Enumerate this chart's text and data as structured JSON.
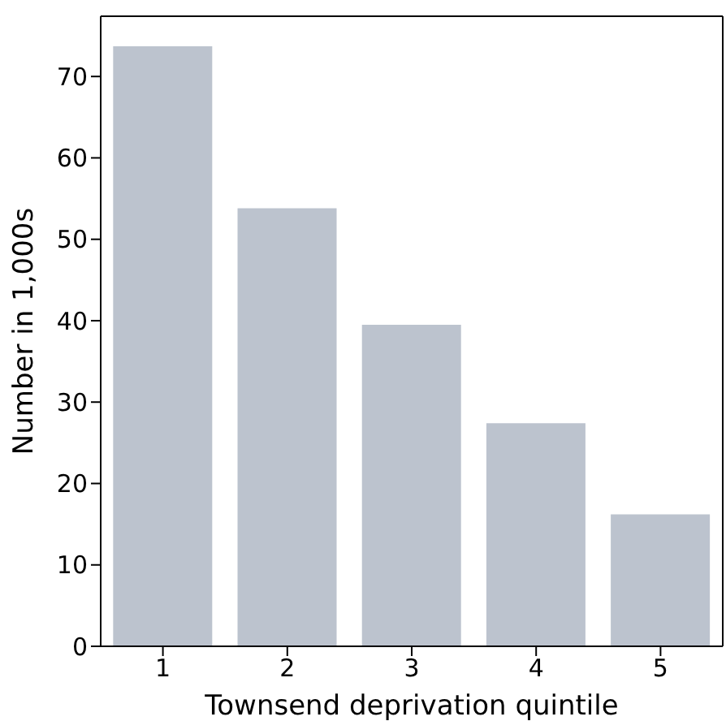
{
  "chart_data": {
    "type": "bar",
    "xlabel": "Townsend deprivation quintile",
    "ylabel": "Number in 1,000s",
    "categories": [
      "1",
      "2",
      "3",
      "4",
      "5"
    ],
    "values": [
      73.7,
      53.8,
      39.5,
      27.4,
      16.2
    ],
    "color": "#bcc3ce",
    "ylim": [
      0,
      77.4
    ],
    "yticks": [
      0,
      10,
      20,
      30,
      40,
      50,
      60,
      70
    ],
    "grid": false,
    "legend": false
  }
}
